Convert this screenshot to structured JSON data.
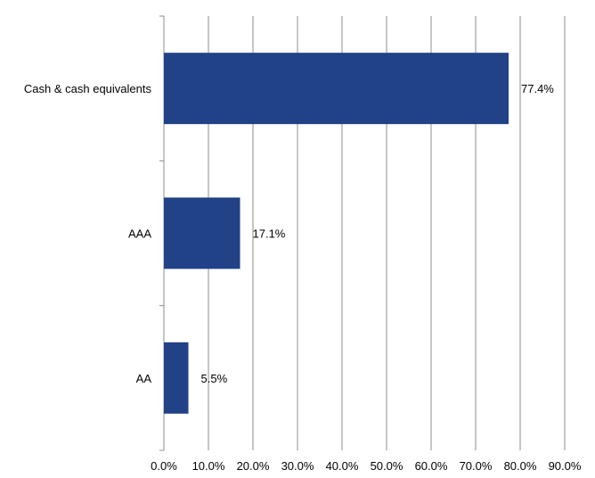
{
  "chart_data": {
    "type": "bar",
    "orientation": "horizontal",
    "categories": [
      "Cash & cash equivalents",
      "AAA",
      "AA"
    ],
    "values": [
      77.4,
      17.1,
      5.5
    ],
    "data_labels": [
      "77.4%",
      "17.1%",
      "5.5%"
    ],
    "xlim": [
      0,
      90
    ],
    "x_ticks": [
      0,
      10,
      20,
      30,
      40,
      50,
      60,
      70,
      80,
      90
    ],
    "x_tick_labels": [
      "0.0%",
      "10.0%",
      "20.0%",
      "30.0%",
      "40.0%",
      "50.0%",
      "60.0%",
      "70.0%",
      "80.0%",
      "90.0%"
    ],
    "grid": "vertical",
    "bar_color": "#214287",
    "grid_color": "#8c8c8c",
    "legend": "none"
  }
}
